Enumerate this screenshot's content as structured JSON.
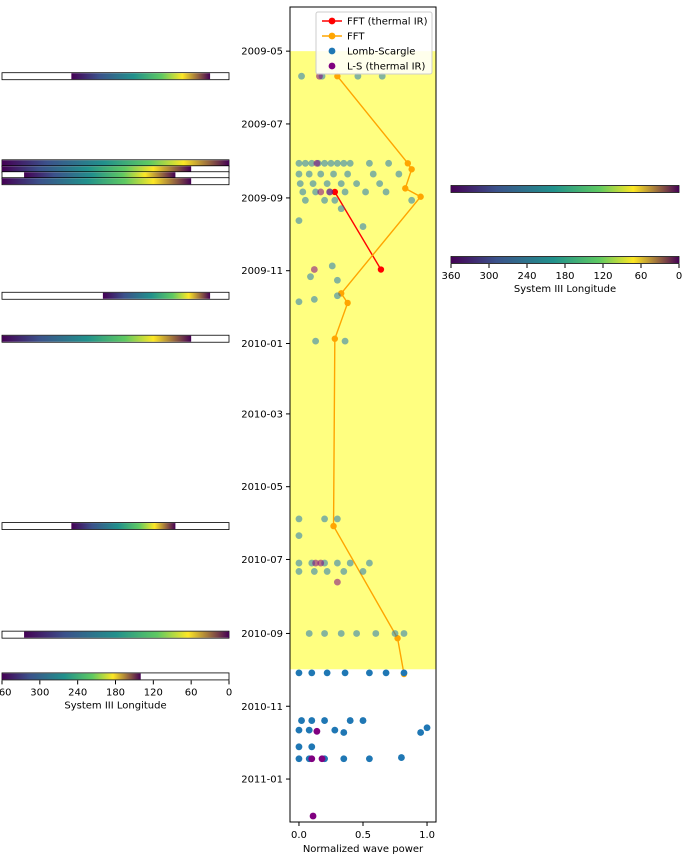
{
  "chart_data": [
    {
      "type": "scatter",
      "xlabel": "Normalized wave power",
      "ylabel": "",
      "xlim": [
        -0.07,
        1.07
      ],
      "xticks": [
        {
          "value": 0,
          "label": "0.0"
        },
        {
          "value": 0.5,
          "label": "0.5"
        },
        {
          "value": 1.0,
          "label": "1.0"
        }
      ],
      "y_is_date": true,
      "ylim": [
        "2009-03-25",
        "2011-02-06"
      ],
      "yticks": [
        "2009-05",
        "2009-07",
        "2009-09",
        "2009-11",
        "2010-01",
        "2010-03",
        "2010-05",
        "2010-07",
        "2010-09",
        "2010-11",
        "2011-01"
      ],
      "highlight_band": {
        "x": [
          -0.07,
          1.07
        ],
        "y": [
          "2009-05-01",
          "2010-10-01"
        ],
        "color": "#ffff80"
      },
      "legend_position": "top-right",
      "series": [
        {
          "name": "FFT (thermal IR)",
          "kind": "line",
          "color": "#ff0000",
          "points": [
            {
              "x": 0.28,
              "y": "2009-08-27"
            },
            {
              "x": 0.64,
              "y": "2009-10-31"
            }
          ]
        },
        {
          "name": "FFT",
          "kind": "line",
          "color": "#ffa500",
          "points": [
            {
              "x": 0.3,
              "y": "2009-05-22"
            },
            {
              "x": 0.85,
              "y": "2009-08-03"
            },
            {
              "x": 0.88,
              "y": "2009-08-08"
            },
            {
              "x": 0.83,
              "y": "2009-08-24"
            },
            {
              "x": 0.95,
              "y": "2009-08-31"
            },
            {
              "x": 0.33,
              "y": "2009-11-20"
            },
            {
              "x": 0.38,
              "y": "2009-11-28"
            },
            {
              "x": 0.28,
              "y": "2009-12-28"
            },
            {
              "x": 0.27,
              "y": "2010-06-03"
            },
            {
              "x": 0.77,
              "y": "2010-09-05"
            },
            {
              "x": 0.82,
              "y": "2010-10-05"
            }
          ]
        },
        {
          "name": "Lomb-Scargle",
          "kind": "scatter",
          "color": "#1f77b4",
          "points": [
            {
              "x": 0.02,
              "y": "2009-05-22"
            },
            {
              "x": 0.18,
              "y": "2009-05-22"
            },
            {
              "x": 0.46,
              "y": "2009-05-22"
            },
            {
              "x": 0.65,
              "y": "2009-05-22"
            },
            {
              "x": 0.0,
              "y": "2009-08-03"
            },
            {
              "x": 0.05,
              "y": "2009-08-03"
            },
            {
              "x": 0.1,
              "y": "2009-08-03"
            },
            {
              "x": 0.15,
              "y": "2009-08-03"
            },
            {
              "x": 0.2,
              "y": "2009-08-03"
            },
            {
              "x": 0.25,
              "y": "2009-08-03"
            },
            {
              "x": 0.3,
              "y": "2009-08-03"
            },
            {
              "x": 0.35,
              "y": "2009-08-03"
            },
            {
              "x": 0.4,
              "y": "2009-08-03"
            },
            {
              "x": 0.55,
              "y": "2009-08-03"
            },
            {
              "x": 0.7,
              "y": "2009-08-03"
            },
            {
              "x": 0.0,
              "y": "2009-08-12"
            },
            {
              "x": 0.08,
              "y": "2009-08-12"
            },
            {
              "x": 0.17,
              "y": "2009-08-12"
            },
            {
              "x": 0.27,
              "y": "2009-08-12"
            },
            {
              "x": 0.38,
              "y": "2009-08-12"
            },
            {
              "x": 0.58,
              "y": "2009-08-12"
            },
            {
              "x": 0.78,
              "y": "2009-08-12"
            },
            {
              "x": 0.01,
              "y": "2009-08-20"
            },
            {
              "x": 0.11,
              "y": "2009-08-20"
            },
            {
              "x": 0.22,
              "y": "2009-08-20"
            },
            {
              "x": 0.33,
              "y": "2009-08-20"
            },
            {
              "x": 0.45,
              "y": "2009-08-20"
            },
            {
              "x": 0.63,
              "y": "2009-08-20"
            },
            {
              "x": 0.03,
              "y": "2009-08-27"
            },
            {
              "x": 0.13,
              "y": "2009-08-27"
            },
            {
              "x": 0.24,
              "y": "2009-08-27"
            },
            {
              "x": 0.36,
              "y": "2009-08-27"
            },
            {
              "x": 0.52,
              "y": "2009-08-27"
            },
            {
              "x": 0.68,
              "y": "2009-08-27"
            },
            {
              "x": 0.05,
              "y": "2009-09-03"
            },
            {
              "x": 0.2,
              "y": "2009-09-03"
            },
            {
              "x": 0.28,
              "y": "2009-09-03"
            },
            {
              "x": 0.88,
              "y": "2009-09-03"
            },
            {
              "x": 0.0,
              "y": "2009-09-20"
            },
            {
              "x": 0.33,
              "y": "2009-09-10"
            },
            {
              "x": 0.5,
              "y": "2009-09-25"
            },
            {
              "x": 0.26,
              "y": "2009-10-28"
            },
            {
              "x": 0.09,
              "y": "2009-11-06"
            },
            {
              "x": 0.3,
              "y": "2009-11-09"
            },
            {
              "x": 0.3,
              "y": "2009-11-22"
            },
            {
              "x": 0.12,
              "y": "2009-11-25"
            },
            {
              "x": 0.0,
              "y": "2009-11-27"
            },
            {
              "x": 0.13,
              "y": "2009-12-30"
            },
            {
              "x": 0.36,
              "y": "2009-12-30"
            },
            {
              "x": 0.0,
              "y": "2010-05-28"
            },
            {
              "x": 0.2,
              "y": "2010-05-28"
            },
            {
              "x": 0.3,
              "y": "2010-05-28"
            },
            {
              "x": 0.0,
              "y": "2010-06-11"
            },
            {
              "x": 0.0,
              "y": "2010-07-04"
            },
            {
              "x": 0.1,
              "y": "2010-07-04"
            },
            {
              "x": 0.2,
              "y": "2010-07-04"
            },
            {
              "x": 0.3,
              "y": "2010-07-04"
            },
            {
              "x": 0.4,
              "y": "2010-07-04"
            },
            {
              "x": 0.55,
              "y": "2010-07-04"
            },
            {
              "x": 0.0,
              "y": "2010-07-11"
            },
            {
              "x": 0.12,
              "y": "2010-07-11"
            },
            {
              "x": 0.22,
              "y": "2010-07-11"
            },
            {
              "x": 0.35,
              "y": "2010-07-11"
            },
            {
              "x": 0.5,
              "y": "2010-07-11"
            },
            {
              "x": 0.08,
              "y": "2010-09-01"
            },
            {
              "x": 0.2,
              "y": "2010-09-01"
            },
            {
              "x": 0.33,
              "y": "2010-09-01"
            },
            {
              "x": 0.45,
              "y": "2010-09-01"
            },
            {
              "x": 0.6,
              "y": "2010-09-01"
            },
            {
              "x": 0.75,
              "y": "2010-09-01"
            },
            {
              "x": 0.82,
              "y": "2010-09-01"
            },
            {
              "x": 0.0,
              "y": "2010-10-04"
            },
            {
              "x": 0.1,
              "y": "2010-10-04"
            },
            {
              "x": 0.22,
              "y": "2010-10-04"
            },
            {
              "x": 0.36,
              "y": "2010-10-04"
            },
            {
              "x": 0.55,
              "y": "2010-10-04"
            },
            {
              "x": 0.68,
              "y": "2010-10-04"
            },
            {
              "x": 0.82,
              "y": "2010-10-04"
            },
            {
              "x": 0.02,
              "y": "2010-11-13"
            },
            {
              "x": 0.1,
              "y": "2010-11-13"
            },
            {
              "x": 0.2,
              "y": "2010-11-13"
            },
            {
              "x": 0.4,
              "y": "2010-11-13"
            },
            {
              "x": 0.5,
              "y": "2010-11-13"
            },
            {
              "x": 0.0,
              "y": "2010-11-21"
            },
            {
              "x": 0.08,
              "y": "2010-11-21"
            },
            {
              "x": 0.28,
              "y": "2010-11-21"
            },
            {
              "x": 0.35,
              "y": "2010-11-23"
            },
            {
              "x": 0.95,
              "y": "2010-11-23"
            },
            {
              "x": 1.0,
              "y": "2010-11-19"
            },
            {
              "x": 0.0,
              "y": "2010-12-05"
            },
            {
              "x": 0.1,
              "y": "2010-12-05"
            },
            {
              "x": 0.0,
              "y": "2010-12-15"
            },
            {
              "x": 0.08,
              "y": "2010-12-15"
            },
            {
              "x": 0.2,
              "y": "2010-12-15"
            },
            {
              "x": 0.35,
              "y": "2010-12-15"
            },
            {
              "x": 0.55,
              "y": "2010-12-15"
            },
            {
              "x": 0.8,
              "y": "2010-12-14"
            }
          ]
        },
        {
          "name": "L-S (thermal IR)",
          "kind": "scatter",
          "color": "#800080",
          "points": [
            {
              "x": 0.16,
              "y": "2009-05-22"
            },
            {
              "x": 0.14,
              "y": "2009-08-03"
            },
            {
              "x": 0.17,
              "y": "2009-08-27"
            },
            {
              "x": 0.24,
              "y": "2009-08-27"
            },
            {
              "x": 0.12,
              "y": "2009-10-31"
            },
            {
              "x": 0.13,
              "y": "2010-07-04"
            },
            {
              "x": 0.17,
              "y": "2010-07-04"
            },
            {
              "x": 0.3,
              "y": "2010-07-20"
            },
            {
              "x": 0.14,
              "y": "2010-11-22"
            },
            {
              "x": 0.1,
              "y": "2010-12-15"
            },
            {
              "x": 0.18,
              "y": "2010-12-15"
            },
            {
              "x": 0.11,
              "y": "2011-02-01"
            }
          ]
        }
      ]
    },
    {
      "type": "heatmap",
      "panel": "left-strips",
      "xlabel": "System III Longitude",
      "xlim": [
        360,
        0
      ],
      "xticks": [
        "360",
        "300",
        "240",
        "180",
        "120",
        "60",
        "0"
      ],
      "colormap": "viridis",
      "strips": [
        {
          "date": "2009-05-22",
          "coverage": [
            250,
            30
          ]
        },
        {
          "date": "2009-08-03",
          "coverage": [
            360,
            0
          ]
        },
        {
          "date": "2009-08-08",
          "coverage": [
            360,
            60
          ]
        },
        {
          "date": "2009-08-13",
          "coverage": [
            325,
            85
          ]
        },
        {
          "date": "2009-08-18",
          "coverage": [
            360,
            60
          ]
        },
        {
          "date": "2009-11-22",
          "coverage": [
            200,
            30
          ]
        },
        {
          "date": "2009-12-28",
          "coverage": [
            360,
            60
          ]
        },
        {
          "date": "2010-06-03",
          "coverage": [
            250,
            85
          ]
        },
        {
          "date": "2010-09-02",
          "coverage": [
            325,
            0
          ]
        },
        {
          "date": "2010-10-07",
          "coverage": [
            360,
            140
          ]
        }
      ]
    },
    {
      "type": "heatmap",
      "panel": "right-strips",
      "xlabel": "System III Longitude",
      "xlim": [
        360,
        0
      ],
      "xticks": [
        "360",
        "300",
        "240",
        "180",
        "120",
        "60",
        "0"
      ],
      "colormap": "viridis",
      "strips": [
        {
          "date": "2009-08-27",
          "coverage": [
            360,
            0
          ]
        },
        {
          "date": "2009-10-31",
          "coverage": [
            360,
            0
          ]
        }
      ]
    }
  ]
}
